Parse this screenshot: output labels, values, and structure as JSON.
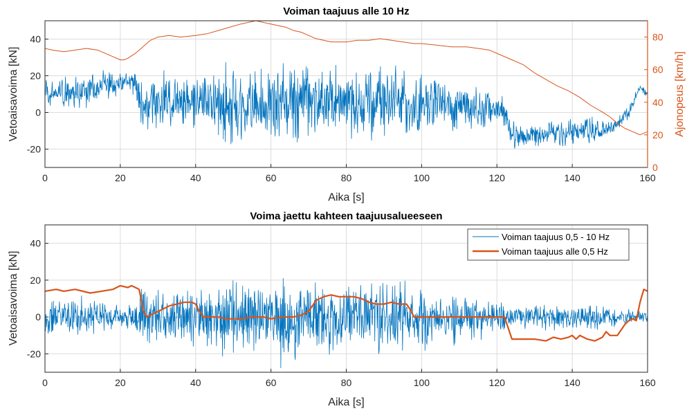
{
  "colors": {
    "blue": "#0072BD",
    "orange": "#D95319",
    "grid": "#dcdcdc",
    "axis": "#262626"
  },
  "chart_data": [
    {
      "type": "line",
      "title": "Voiman taajuus alle 10 Hz",
      "xlabel": "Aika [s]",
      "ylabel": "Vetoaisavoima [kN]",
      "ylabel_right": "Ajonopeus [km/h]",
      "xlim": [
        0,
        160
      ],
      "ylim": [
        -30,
        50
      ],
      "ylim_right": [
        0,
        90
      ],
      "xticks": [
        0,
        20,
        40,
        60,
        80,
        100,
        120,
        140,
        160
      ],
      "xtick_labels": [
        "0",
        "20",
        "40",
        "60",
        "80",
        "100",
        "120",
        "140",
        "160"
      ],
      "yticks": [
        -20,
        0,
        20,
        40
      ],
      "ytick_labels": [
        "-20",
        "0",
        "20",
        "40"
      ],
      "yticks_right": [
        0,
        20,
        40,
        60,
        80
      ],
      "ytick_labels_right": [
        "0",
        "20",
        "40",
        "60",
        "80"
      ],
      "grid": true,
      "series": [
        {
          "name": "Vetoaisavoima (< 10 Hz)",
          "axis": "left",
          "envelope": {
            "t": [
              0,
              5,
              10,
              15,
              20,
              24,
              25,
              26,
              30,
              35,
              40,
              45,
              48,
              50,
              55,
              60,
              62,
              63,
              65,
              70,
              72,
              75,
              80,
              85,
              90,
              95,
              100,
              105,
              110,
              115,
              120,
              122,
              123,
              125,
              130,
              135,
              140,
              145,
              150,
              152,
              155,
              157,
              158,
              160
            ],
            "mean": [
              12,
              10,
              12,
              14,
              16,
              16,
              8,
              4,
              6,
              6,
              7,
              5,
              4,
              3,
              3,
              4,
              4,
              4,
              5,
              6,
              7,
              7,
              6,
              5,
              6,
              5,
              4,
              4,
              3,
              2,
              1,
              0,
              -8,
              -12,
              -12,
              -11,
              -11,
              -10,
              -9,
              -6,
              0,
              10,
              14,
              10
            ],
            "spread": [
              10,
              12,
              13,
              10,
              8,
              8,
              22,
              22,
              18,
              18,
              18,
              22,
              26,
              28,
              22,
              24,
              26,
              30,
              26,
              26,
              28,
              24,
              24,
              24,
              24,
              22,
              20,
              18,
              16,
              14,
              10,
              10,
              9,
              9,
              8,
              8,
              9,
              9,
              7,
              5,
              5,
              4,
              4,
              4
            ]
          }
        },
        {
          "name": "Ajonopeus",
          "axis": "right",
          "t": [
            0,
            2,
            5,
            8,
            11,
            14,
            16,
            18,
            20,
            21,
            22,
            24,
            26,
            28,
            30,
            33,
            36,
            40,
            43,
            46,
            49,
            52,
            54,
            56,
            58,
            60,
            62,
            64,
            66,
            68,
            70,
            72,
            74,
            76,
            78,
            80,
            83,
            86,
            89,
            92,
            95,
            98,
            100,
            104,
            108,
            112,
            115,
            118,
            121,
            124,
            127,
            130,
            133,
            136,
            139,
            142,
            145,
            148,
            150,
            152,
            154,
            156,
            157,
            158,
            160
          ],
          "values": [
            73,
            72,
            71,
            72,
            73,
            72,
            70,
            68,
            66,
            66,
            67,
            70,
            74,
            78,
            80,
            81,
            80,
            81,
            82,
            84,
            86,
            88,
            89,
            90,
            89,
            88,
            87,
            86,
            84,
            83,
            81,
            79,
            78,
            77,
            77,
            77,
            78,
            78,
            79,
            78,
            77,
            76,
            76,
            75,
            74,
            74,
            73,
            72,
            69,
            66,
            63,
            58,
            54,
            50,
            47,
            43,
            38,
            34,
            31,
            27,
            24,
            22,
            21,
            20,
            22
          ]
        }
      ]
    },
    {
      "type": "line",
      "title": "Voima jaettu kahteen taajuusalueeseen",
      "xlabel": "Aika [s]",
      "ylabel": "Vetoaisavoima [kN]",
      "xlim": [
        0,
        160
      ],
      "ylim": [
        -30,
        50
      ],
      "xticks": [
        0,
        20,
        40,
        60,
        80,
        100,
        120,
        140,
        160
      ],
      "xtick_labels": [
        "0",
        "20",
        "40",
        "60",
        "80",
        "100",
        "120",
        "140",
        "160"
      ],
      "yticks": [
        -20,
        0,
        20,
        40
      ],
      "ytick_labels": [
        "-20",
        "0",
        "20",
        "40"
      ],
      "grid": true,
      "legend": {
        "position": "top-right",
        "entries": [
          "Voiman taajuus 0,5 - 10 Hz",
          "Voiman taajuus alle 0,5 Hz"
        ]
      },
      "series": [
        {
          "name": "Voiman taajuus 0,5 - 10 Hz",
          "envelope": {
            "t": [
              0,
              5,
              10,
              15,
              20,
              24,
              25,
              26,
              30,
              35,
              40,
              45,
              48,
              50,
              55,
              60,
              62,
              63,
              65,
              70,
              72,
              75,
              80,
              85,
              90,
              95,
              100,
              105,
              110,
              115,
              120,
              122,
              123,
              125,
              130,
              135,
              140,
              145,
              150,
              152,
              155,
              157,
              158,
              160
            ],
            "mean": [
              0,
              0,
              0,
              0,
              0,
              0,
              0,
              0,
              0,
              0,
              0,
              0,
              0,
              0,
              0,
              0,
              0,
              0,
              0,
              0,
              0,
              0,
              0,
              0,
              0,
              0,
              0,
              0,
              0,
              0,
              0,
              0,
              0,
              0,
              0,
              0,
              0,
              0,
              0,
              0,
              0,
              0,
              0,
              0
            ],
            "spread": [
              10,
              12,
              14,
              10,
              8,
              8,
              22,
              22,
              18,
              18,
              18,
              22,
              26,
              28,
              22,
              24,
              26,
              32,
              26,
              26,
              28,
              24,
              24,
              24,
              24,
              22,
              20,
              18,
              16,
              14,
              10,
              10,
              9,
              9,
              8,
              8,
              9,
              9,
              7,
              5,
              5,
              4,
              4,
              4
            ]
          }
        },
        {
          "name": "Voiman taajuus alle 0,5 Hz",
          "t": [
            0,
            3,
            5,
            8,
            12,
            15,
            18,
            20,
            22,
            23,
            24,
            25,
            25.5,
            26,
            27,
            29,
            31,
            33,
            35,
            37,
            39,
            40,
            41,
            42,
            44,
            46,
            48,
            50,
            52,
            55,
            58,
            60,
            63,
            66,
            68,
            70,
            71,
            72,
            74,
            76,
            78,
            80,
            82,
            84,
            86,
            88,
            90,
            92,
            94,
            96,
            97,
            98,
            100,
            105,
            110,
            115,
            120,
            122,
            123,
            124,
            126,
            128,
            130,
            133,
            135,
            137,
            139,
            140,
            141,
            142,
            144,
            146,
            148,
            149,
            150,
            152,
            153,
            154,
            155,
            156,
            157,
            158,
            159,
            160
          ],
          "values": [
            14,
            15,
            14,
            15,
            13,
            14,
            15,
            17,
            16,
            17,
            16,
            15,
            10,
            4,
            0,
            2,
            4,
            6,
            7,
            8,
            8,
            7,
            3,
            0,
            0,
            0,
            -1,
            -1,
            -1,
            0,
            0,
            -1,
            0,
            0,
            1,
            3,
            6,
            9,
            11,
            12,
            11,
            11,
            11,
            10,
            8,
            7,
            7,
            8,
            7,
            7,
            4,
            0,
            0,
            0,
            0,
            0,
            0,
            0,
            -6,
            -12,
            -12,
            -12,
            -12,
            -13,
            -11,
            -12,
            -11,
            -10,
            -12,
            -10,
            -12,
            -13,
            -11,
            -8,
            -10,
            -10,
            -7,
            -4,
            -2,
            -1,
            -2,
            8,
            15,
            14
          ]
        }
      ]
    }
  ]
}
